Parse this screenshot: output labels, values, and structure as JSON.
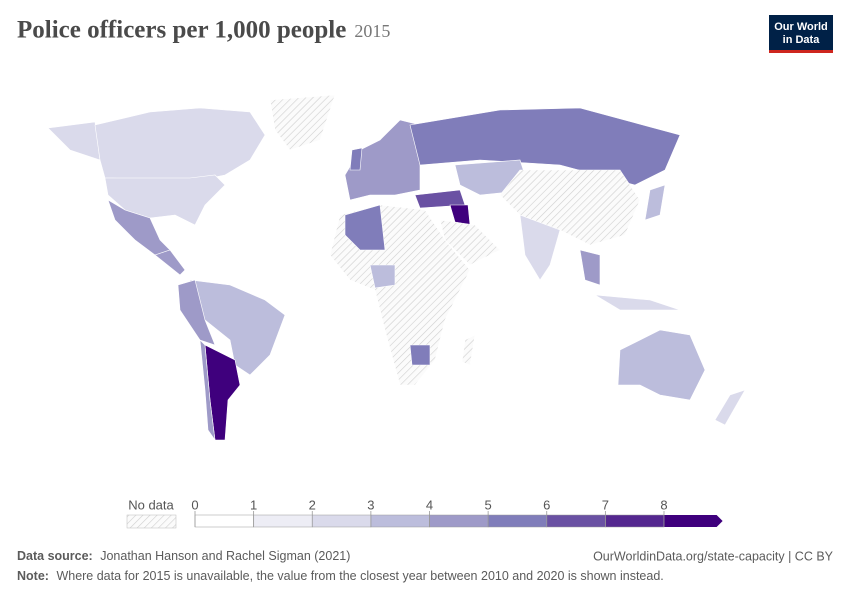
{
  "title": "Police officers per 1,000 people",
  "year": "2015",
  "logo": [
    "Our World",
    "in Data"
  ],
  "legend": {
    "no_data": "No data",
    "ticks": [
      0,
      1,
      2,
      3,
      4,
      5,
      6,
      7,
      8
    ],
    "colors": [
      "#ffffff",
      "#ededf5",
      "#dadaeb",
      "#bcbddc",
      "#9e9ac8",
      "#807dba",
      "#6a51a3",
      "#54278f",
      "#3f007d"
    ]
  },
  "footer": {
    "source_label": "Data source:",
    "source": "Jonathan Hanson and Rachel Sigman (2021)",
    "url": "OurWorldinData.org/state-capacity | CC BY",
    "note_label": "Note:",
    "note": "Where data for 2015 is unavailable, the value from the closest year between 2010 and 2020 is shown instead."
  }
}
